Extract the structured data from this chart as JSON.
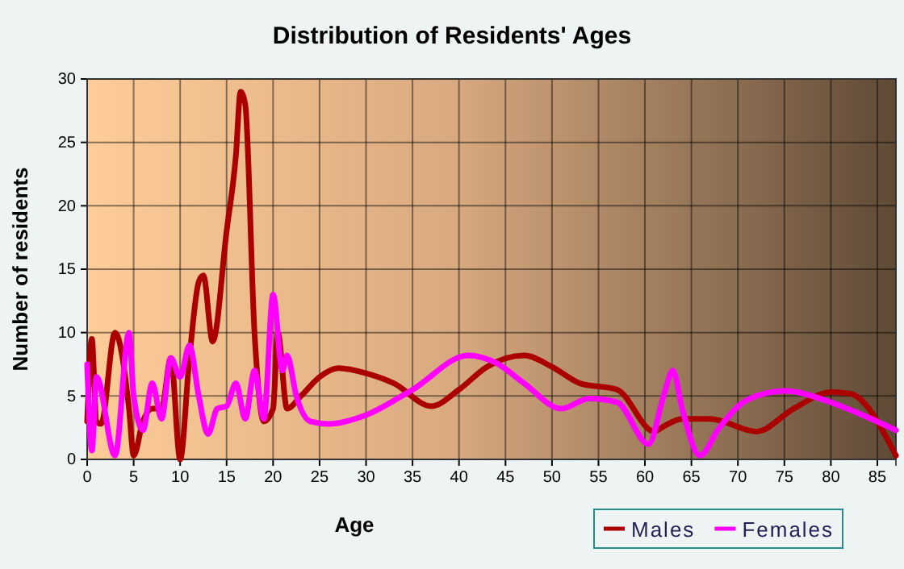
{
  "chart_data": {
    "type": "line",
    "title": "Distribution of Residents' Ages",
    "xlabel": "Age",
    "ylabel": "Number of residents",
    "xlim": [
      0,
      87
    ],
    "xticks": [
      0,
      5,
      10,
      15,
      20,
      25,
      30,
      35,
      40,
      45,
      50,
      55,
      60,
      65,
      70,
      75,
      80,
      85
    ],
    "ylim": [
      0,
      30
    ],
    "yticks": [
      0,
      5,
      10,
      15,
      20,
      25,
      30
    ],
    "grid": true,
    "legend": "bottom right",
    "marker": "none",
    "line_style": "solid",
    "series": [
      {
        "name": "Males",
        "color": "#aa0000",
        "x": [
          0,
          0.5,
          1,
          1.5,
          3,
          4.5,
          5,
          6,
          7,
          8,
          9,
          10,
          11,
          12,
          12.5,
          13.5,
          15,
          16,
          16.5,
          17,
          18,
          19,
          20,
          20.5,
          21.5,
          23,
          25,
          27,
          30,
          33,
          37,
          40,
          43,
          47,
          50,
          53,
          57,
          61,
          62,
          64,
          67,
          72,
          76,
          80,
          82,
          87
        ],
        "values": [
          3,
          9.5,
          3,
          2.8,
          10,
          4,
          0.3,
          3,
          4,
          4,
          8,
          0,
          8,
          14,
          14.5,
          9.3,
          18,
          24,
          29,
          28,
          10,
          3,
          4,
          10,
          4,
          5,
          6.5,
          7.2,
          6.8,
          6,
          4.2,
          5.5,
          7.3,
          8.2,
          7.3,
          6,
          5.5,
          2.2,
          2.6,
          3.2,
          3.2,
          2.2,
          4,
          5.3,
          5.2,
          0.3
        ]
      },
      {
        "name": "Females",
        "color": "#ff00ff",
        "x": [
          0,
          0.5,
          1,
          3,
          4.5,
          5,
          6,
          7,
          8,
          9,
          10,
          11,
          12,
          13,
          14,
          15,
          16,
          17,
          18,
          19,
          20,
          21,
          21.5,
          22.5,
          24,
          26,
          30,
          35,
          41,
          44,
          47,
          51,
          54,
          57,
          60.4,
          62,
          63,
          64,
          65.9,
          68,
          71,
          75,
          80,
          84,
          87
        ],
        "values": [
          7.5,
          0.7,
          6.5,
          0.3,
          10,
          5,
          2.3,
          6,
          3.2,
          8,
          6.5,
          9,
          5,
          2,
          4,
          4.2,
          6,
          3.2,
          7,
          3.2,
          13,
          7,
          8.2,
          5,
          3,
          2.8,
          3.5,
          5.5,
          8.2,
          7.6,
          6,
          4,
          4.8,
          4.5,
          1.2,
          5,
          7,
          4,
          0.3,
          2.5,
          4.7,
          5.4,
          4.5,
          3.3,
          2.3
        ]
      }
    ]
  }
}
